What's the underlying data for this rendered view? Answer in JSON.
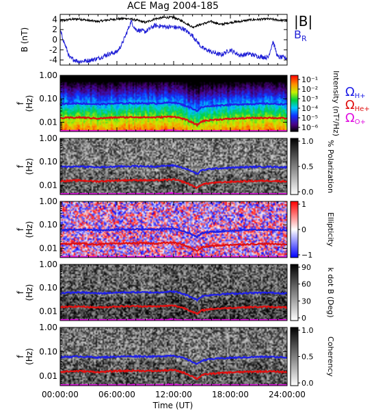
{
  "title": "ACE Mag 2004-185",
  "time_ticks": [
    "00:00:00",
    "06:00:00",
    "12:00:00",
    "18:00:00",
    "24:00:00"
  ],
  "time_label": "Time (UT)",
  "colors": {
    "B_total": "#000000",
    "B_R": "#1f1fd6",
    "H_plus": "#1f1fe6",
    "He_plus": "#e01010",
    "O_plus": "#e010e0"
  },
  "freq_ticks": [
    "1.00",
    "0.10",
    "0.01"
  ],
  "chart_data": [
    {
      "type": "line",
      "panel": "magnetic-field",
      "ylabel": "B (nT)",
      "ylim": [
        -5,
        5
      ],
      "yticks": [
        "4",
        "2",
        "0",
        "-2",
        "-4"
      ],
      "xlim_hours": [
        0,
        24
      ],
      "series": [
        {
          "name": "|B|",
          "x_hours": [
            0,
            1,
            2,
            3,
            4,
            5,
            6,
            7,
            8,
            9,
            10,
            11,
            12,
            13,
            14,
            15,
            16,
            17,
            18,
            19,
            20,
            21,
            22,
            23,
            24
          ],
          "values": [
            3.7,
            4.0,
            4.1,
            3.8,
            3.6,
            3.9,
            4.1,
            4.2,
            3.9,
            3.4,
            4.1,
            4.4,
            4.4,
            3.6,
            2.5,
            3.1,
            3.6,
            3.0,
            3.4,
            3.6,
            3.9,
            4.0,
            4.1,
            3.9,
            3.7
          ]
        },
        {
          "name": "BR",
          "x_hours": [
            0,
            1,
            2,
            3,
            4,
            5,
            6,
            6.5,
            7,
            7.5,
            8,
            9,
            10,
            11,
            12,
            13,
            14,
            15,
            16,
            17,
            18,
            19,
            20,
            21,
            22,
            22.5,
            23,
            24
          ],
          "values": [
            1.8,
            -3.6,
            -4.3,
            -4.1,
            -3.7,
            -2.9,
            -2.4,
            -1.0,
            1.2,
            3.6,
            2.0,
            1.6,
            2.8,
            2.6,
            2.5,
            2.2,
            0.8,
            -1.6,
            -2.4,
            -3.0,
            -2.0,
            -3.1,
            -2.8,
            -3.3,
            -3.5,
            -0.3,
            -3.4,
            -3.6
          ]
        }
      ]
    },
    {
      "type": "heatmap",
      "panel": "intensity",
      "ylabel": "f (Hz)",
      "ylim": [
        0.004,
        1
      ],
      "yscale": "log",
      "colorbar_label": "Intensity (nT²/Hz)",
      "colorbar_ticks": [
        "10⁻¹",
        "10⁻²",
        "10⁻³",
        "10⁻⁴",
        "10⁻⁵",
        "10⁻⁶"
      ],
      "colormap": "rainbow"
    },
    {
      "type": "heatmap",
      "panel": "polarization",
      "ylabel": "f (Hz)",
      "ylim": [
        0.004,
        1
      ],
      "yscale": "log",
      "colorbar_label": "% Polarization",
      "colorbar_ticks": [
        "1.0",
        "0.5",
        "0.0"
      ],
      "colormap": "gray"
    },
    {
      "type": "heatmap",
      "panel": "ellipticity",
      "ylabel": "f (Hz)",
      "ylim": [
        0.004,
        1
      ],
      "yscale": "log",
      "colorbar_label": "Ellipticity",
      "colorbar_ticks": [
        "1",
        "0",
        "−1"
      ],
      "colormap": "blue-white-red"
    },
    {
      "type": "heatmap",
      "panel": "k-dot-b",
      "ylabel": "f (Hz)",
      "ylim": [
        0.004,
        1
      ],
      "yscale": "log",
      "colorbar_label": "k dot B (Deg)",
      "colorbar_ticks": [
        "90",
        "60",
        "30",
        "0"
      ],
      "colormap": "gray"
    },
    {
      "type": "heatmap",
      "panel": "coherency",
      "ylabel": "f (Hz)",
      "ylim": [
        0.004,
        1
      ],
      "yscale": "log",
      "colorbar_label": "Coherency",
      "colorbar_ticks": [
        "1.0",
        "0.5",
        "0.0"
      ],
      "colormap": "gray"
    }
  ],
  "gyrofrequency_lines": {
    "x_hours": [
      0,
      2,
      4,
      6,
      8,
      10,
      12,
      13,
      14,
      14.5,
      15,
      16,
      18,
      20,
      22,
      24
    ],
    "H_plus_hz": [
      0.06,
      0.064,
      0.058,
      0.063,
      0.065,
      0.063,
      0.07,
      0.055,
      0.038,
      0.03,
      0.044,
      0.05,
      0.056,
      0.06,
      0.062,
      0.058
    ],
    "He_plus_hz": [
      0.015,
      0.016,
      0.0145,
      0.016,
      0.0165,
      0.016,
      0.0175,
      0.014,
      0.0095,
      0.0075,
      0.011,
      0.0125,
      0.014,
      0.015,
      0.0155,
      0.0145
    ],
    "O_plus_hz": [
      0.004,
      0.0042,
      0.0038,
      0.0041,
      0.0042,
      0.0041,
      0.0045,
      0.0036,
      0.0027,
      0.0022,
      0.0029,
      0.0032,
      0.0036,
      0.0039,
      0.004,
      0.0038
    ]
  },
  "legend": {
    "B_total": "|B|",
    "B_R": "B",
    "B_R_sub": "R",
    "omega": "Ω",
    "H_sub": "H+",
    "He_sub": "He+",
    "O_sub": "O+"
  }
}
